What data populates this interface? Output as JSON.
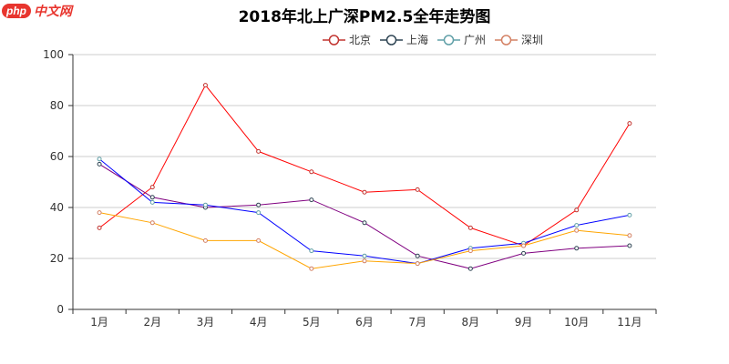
{
  "logo": {
    "php": "php",
    "text": "中文网"
  },
  "chart_data": {
    "type": "line",
    "title": "2018年北上广深PM2.5全年走势图",
    "categories": [
      "1月",
      "2月",
      "3月",
      "4月",
      "5月",
      "6月",
      "7月",
      "8月",
      "9月",
      "10月",
      "11月"
    ],
    "ylim": [
      0,
      100
    ],
    "yticks": [
      0,
      20,
      40,
      60,
      80,
      100
    ],
    "grid": "horizontal",
    "legend_position": "top-center",
    "series": [
      {
        "name": "北京",
        "color": "#ff0000",
        "marker_color": "#c23531",
        "values": [
          32,
          48,
          88,
          62,
          54,
          46,
          47,
          32,
          25,
          39,
          73
        ]
      },
      {
        "name": "上海",
        "color": "#800080",
        "marker_color": "#2f4554",
        "values": [
          57,
          44,
          40,
          41,
          43,
          34,
          21,
          16,
          22,
          24,
          25
        ]
      },
      {
        "name": "广州",
        "color": "#0000ff",
        "marker_color": "#61a0a8",
        "values": [
          59,
          42,
          41,
          38,
          23,
          21,
          18,
          24,
          26,
          33,
          37
        ]
      },
      {
        "name": "深圳",
        "color": "#ffa500",
        "marker_color": "#d48265",
        "values": [
          38,
          34,
          27,
          27,
          16,
          19,
          18,
          23,
          25,
          31,
          29
        ]
      }
    ]
  }
}
